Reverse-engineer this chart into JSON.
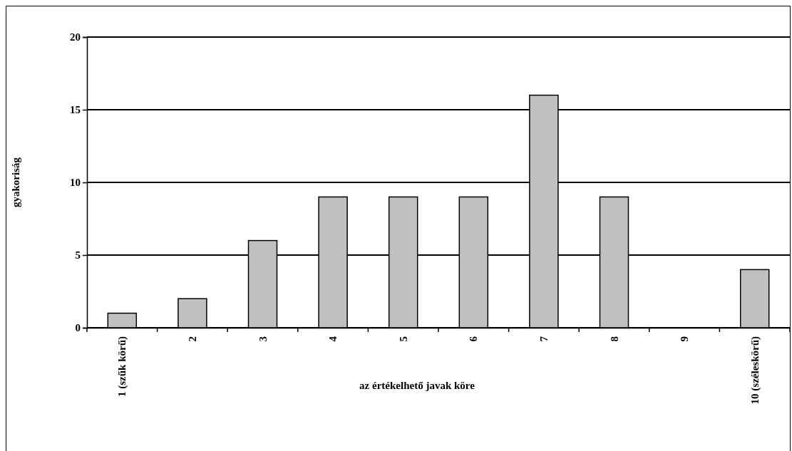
{
  "chart_data": {
    "type": "bar",
    "xlabel": "az értékelhető javak köre",
    "ylabel": "gyakoriság",
    "categories": [
      "1 (szűk körű)",
      "2",
      "3",
      "4",
      "5",
      "6",
      "7",
      "8",
      "9",
      "10 (széleskörű)"
    ],
    "values": [
      1,
      2,
      6,
      9,
      9,
      9,
      16,
      9,
      0,
      4
    ],
    "color": "#c0c0c0",
    "ylim": [
      0,
      20
    ],
    "yticks": [
      0,
      5,
      10,
      15,
      20
    ],
    "grid": "y"
  }
}
